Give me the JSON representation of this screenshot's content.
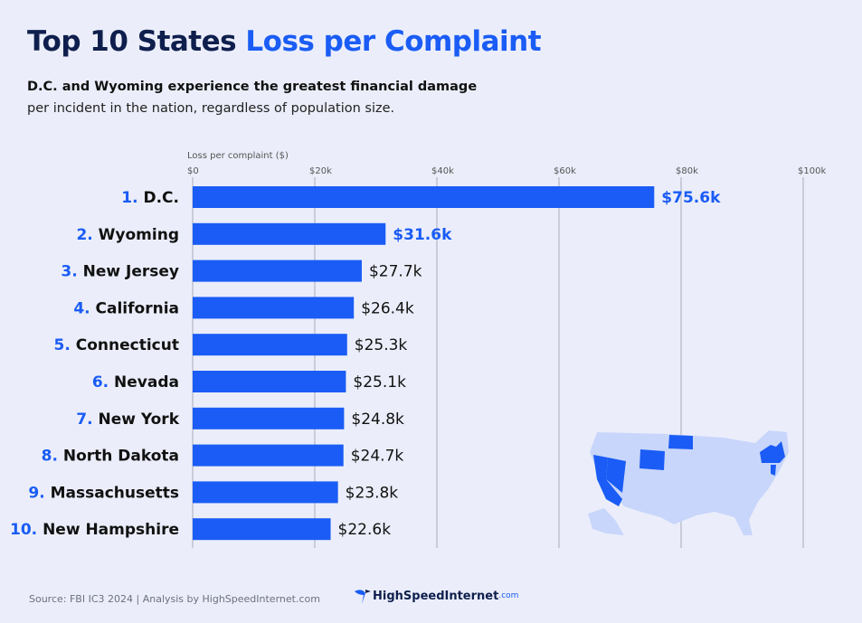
{
  "header": {
    "title_main": "Top 10 States",
    "title_accent": "Loss per Complaint",
    "subtitle_bold": "D.C. and Wyoming experience the greatest financial damage",
    "subtitle": "per incident in the nation, regardless of population size."
  },
  "chart_data": {
    "type": "bar",
    "orientation": "horizontal",
    "xlabel": "Loss per complaint ($)",
    "xlim": [
      0,
      100000
    ],
    "xticks": [
      0,
      20000,
      40000,
      60000,
      80000,
      100000
    ],
    "xtick_labels": [
      "$0",
      "$20k",
      "$40k",
      "$60k",
      "$80k",
      "$100k"
    ],
    "grid": true,
    "categories": [
      "1. D.C.",
      "2. Wyoming",
      "3. New Jersey",
      "4. California",
      "5. Connecticut",
      "6. Nevada",
      "7. New York",
      "8. North Dakota",
      "9. Massachusetts",
      "10. New Hampshire"
    ],
    "ranks": [
      "1.",
      "2.",
      "3.",
      "4.",
      "5.",
      "6.",
      "7.",
      "8.",
      "9.",
      "10."
    ],
    "names": [
      "D.C.",
      "Wyoming",
      "New Jersey",
      "California",
      "Connecticut",
      "Nevada",
      "New York",
      "North Dakota",
      "Massachusetts",
      "New Hampshire"
    ],
    "values": [
      75600,
      31600,
      27700,
      26400,
      25300,
      25100,
      24800,
      24700,
      23800,
      22600
    ],
    "data_labels": [
      "$75.6k",
      "$31.6k",
      "$27.7k",
      "$26.4k",
      "$25.3k",
      "$25.1k",
      "$24.8k",
      "$24.7k",
      "$23.8k",
      "$22.6k"
    ],
    "highlighted_labels": 2
  },
  "colors": {
    "bar": "#1a5cf5",
    "accent": "#1a5cf5",
    "title": "#0f1f4d",
    "background": "#ebeefa",
    "map_base": "#c9d6fb"
  },
  "footer": {
    "source": "Source: FBI IC3 2024 | Analysis by HighSpeedInternet.com",
    "logo": "HighSpeedInternet",
    "logo_suffix": ".com"
  }
}
